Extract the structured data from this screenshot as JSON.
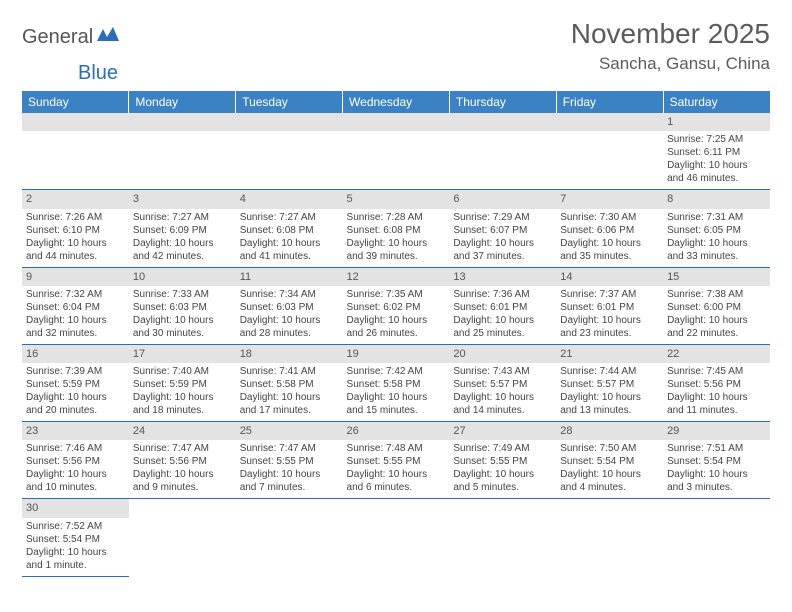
{
  "logo": {
    "text1": "General",
    "text2": "Blue"
  },
  "title": {
    "month": "November 2025",
    "location": "Sancha, Gansu, China"
  },
  "colors": {
    "header_bg": "#3b82c4",
    "header_text": "#ffffff",
    "daynum_bg": "#e3e3e3",
    "body_text": "#444444",
    "accent": "#2a6db8"
  },
  "weekdays": [
    "Sunday",
    "Monday",
    "Tuesday",
    "Wednesday",
    "Thursday",
    "Friday",
    "Saturday"
  ],
  "weeks": [
    [
      null,
      null,
      null,
      null,
      null,
      null,
      {
        "n": "1",
        "sr": "Sunrise: 7:25 AM",
        "ss": "Sunset: 6:11 PM",
        "dl": "Daylight: 10 hours and 46 minutes."
      }
    ],
    [
      {
        "n": "2",
        "sr": "Sunrise: 7:26 AM",
        "ss": "Sunset: 6:10 PM",
        "dl": "Daylight: 10 hours and 44 minutes."
      },
      {
        "n": "3",
        "sr": "Sunrise: 7:27 AM",
        "ss": "Sunset: 6:09 PM",
        "dl": "Daylight: 10 hours and 42 minutes."
      },
      {
        "n": "4",
        "sr": "Sunrise: 7:27 AM",
        "ss": "Sunset: 6:08 PM",
        "dl": "Daylight: 10 hours and 41 minutes."
      },
      {
        "n": "5",
        "sr": "Sunrise: 7:28 AM",
        "ss": "Sunset: 6:08 PM",
        "dl": "Daylight: 10 hours and 39 minutes."
      },
      {
        "n": "6",
        "sr": "Sunrise: 7:29 AM",
        "ss": "Sunset: 6:07 PM",
        "dl": "Daylight: 10 hours and 37 minutes."
      },
      {
        "n": "7",
        "sr": "Sunrise: 7:30 AM",
        "ss": "Sunset: 6:06 PM",
        "dl": "Daylight: 10 hours and 35 minutes."
      },
      {
        "n": "8",
        "sr": "Sunrise: 7:31 AM",
        "ss": "Sunset: 6:05 PM",
        "dl": "Daylight: 10 hours and 33 minutes."
      }
    ],
    [
      {
        "n": "9",
        "sr": "Sunrise: 7:32 AM",
        "ss": "Sunset: 6:04 PM",
        "dl": "Daylight: 10 hours and 32 minutes."
      },
      {
        "n": "10",
        "sr": "Sunrise: 7:33 AM",
        "ss": "Sunset: 6:03 PM",
        "dl": "Daylight: 10 hours and 30 minutes."
      },
      {
        "n": "11",
        "sr": "Sunrise: 7:34 AM",
        "ss": "Sunset: 6:03 PM",
        "dl": "Daylight: 10 hours and 28 minutes."
      },
      {
        "n": "12",
        "sr": "Sunrise: 7:35 AM",
        "ss": "Sunset: 6:02 PM",
        "dl": "Daylight: 10 hours and 26 minutes."
      },
      {
        "n": "13",
        "sr": "Sunrise: 7:36 AM",
        "ss": "Sunset: 6:01 PM",
        "dl": "Daylight: 10 hours and 25 minutes."
      },
      {
        "n": "14",
        "sr": "Sunrise: 7:37 AM",
        "ss": "Sunset: 6:01 PM",
        "dl": "Daylight: 10 hours and 23 minutes."
      },
      {
        "n": "15",
        "sr": "Sunrise: 7:38 AM",
        "ss": "Sunset: 6:00 PM",
        "dl": "Daylight: 10 hours and 22 minutes."
      }
    ],
    [
      {
        "n": "16",
        "sr": "Sunrise: 7:39 AM",
        "ss": "Sunset: 5:59 PM",
        "dl": "Daylight: 10 hours and 20 minutes."
      },
      {
        "n": "17",
        "sr": "Sunrise: 7:40 AM",
        "ss": "Sunset: 5:59 PM",
        "dl": "Daylight: 10 hours and 18 minutes."
      },
      {
        "n": "18",
        "sr": "Sunrise: 7:41 AM",
        "ss": "Sunset: 5:58 PM",
        "dl": "Daylight: 10 hours and 17 minutes."
      },
      {
        "n": "19",
        "sr": "Sunrise: 7:42 AM",
        "ss": "Sunset: 5:58 PM",
        "dl": "Daylight: 10 hours and 15 minutes."
      },
      {
        "n": "20",
        "sr": "Sunrise: 7:43 AM",
        "ss": "Sunset: 5:57 PM",
        "dl": "Daylight: 10 hours and 14 minutes."
      },
      {
        "n": "21",
        "sr": "Sunrise: 7:44 AM",
        "ss": "Sunset: 5:57 PM",
        "dl": "Daylight: 10 hours and 13 minutes."
      },
      {
        "n": "22",
        "sr": "Sunrise: 7:45 AM",
        "ss": "Sunset: 5:56 PM",
        "dl": "Daylight: 10 hours and 11 minutes."
      }
    ],
    [
      {
        "n": "23",
        "sr": "Sunrise: 7:46 AM",
        "ss": "Sunset: 5:56 PM",
        "dl": "Daylight: 10 hours and 10 minutes."
      },
      {
        "n": "24",
        "sr": "Sunrise: 7:47 AM",
        "ss": "Sunset: 5:56 PM",
        "dl": "Daylight: 10 hours and 9 minutes."
      },
      {
        "n": "25",
        "sr": "Sunrise: 7:47 AM",
        "ss": "Sunset: 5:55 PM",
        "dl": "Daylight: 10 hours and 7 minutes."
      },
      {
        "n": "26",
        "sr": "Sunrise: 7:48 AM",
        "ss": "Sunset: 5:55 PM",
        "dl": "Daylight: 10 hours and 6 minutes."
      },
      {
        "n": "27",
        "sr": "Sunrise: 7:49 AM",
        "ss": "Sunset: 5:55 PM",
        "dl": "Daylight: 10 hours and 5 minutes."
      },
      {
        "n": "28",
        "sr": "Sunrise: 7:50 AM",
        "ss": "Sunset: 5:54 PM",
        "dl": "Daylight: 10 hours and 4 minutes."
      },
      {
        "n": "29",
        "sr": "Sunrise: 7:51 AM",
        "ss": "Sunset: 5:54 PM",
        "dl": "Daylight: 10 hours and 3 minutes."
      }
    ],
    [
      {
        "n": "30",
        "sr": "Sunrise: 7:52 AM",
        "ss": "Sunset: 5:54 PM",
        "dl": "Daylight: 10 hours and 1 minute."
      },
      null,
      null,
      null,
      null,
      null,
      null
    ]
  ]
}
